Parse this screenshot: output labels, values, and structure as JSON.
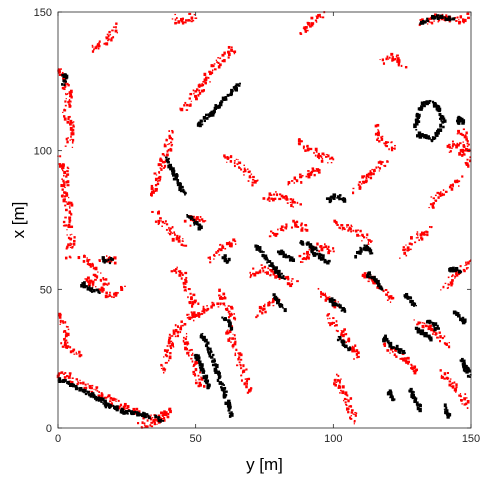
{
  "chart_data": {
    "type": "scatter",
    "title": "",
    "xlabel": "y [m]",
    "ylabel": "x [m]",
    "xlim": [
      0,
      150
    ],
    "ylim": [
      0,
      150
    ],
    "grid": false,
    "legend": "none",
    "x_ticks": [
      "0",
      "50",
      "100",
      "150"
    ],
    "y_ticks": [
      "0",
      "50",
      "100",
      "150"
    ],
    "colors": {
      "red_points": "#ff0000",
      "black_points": "#000000",
      "axes": "#262626",
      "background": "#ffffff"
    },
    "red_features": [
      [
        [
          0,
          130
        ],
        [
          2,
          126
        ],
        [
          4,
          120
        ],
        [
          3,
          114
        ],
        [
          5,
          108
        ],
        [
          4,
          102
        ]
      ],
      [
        [
          0,
          98
        ],
        [
          3,
          92
        ],
        [
          2,
          85
        ],
        [
          4,
          80
        ],
        [
          3,
          74
        ],
        [
          5,
          68
        ],
        [
          4,
          62
        ]
      ],
      [
        [
          0,
          40
        ],
        [
          3,
          36
        ],
        [
          2,
          30
        ],
        [
          5,
          28
        ],
        [
          8,
          26
        ]
      ],
      [
        [
          0,
          20
        ],
        [
          6,
          17
        ],
        [
          12,
          14
        ],
        [
          18,
          11
        ],
        [
          24,
          8
        ],
        [
          30,
          5
        ],
        [
          36,
          3
        ]
      ],
      [
        [
          8,
          62
        ],
        [
          12,
          58
        ],
        [
          15,
          54
        ],
        [
          18,
          52
        ]
      ],
      [
        [
          10,
          54
        ],
        [
          14,
          50
        ],
        [
          20,
          48
        ],
        [
          24,
          50
        ]
      ],
      [
        [
          16,
          60
        ],
        [
          19,
          61
        ],
        [
          22,
          60
        ]
      ],
      [
        [
          38,
          20
        ],
        [
          40,
          28
        ],
        [
          42,
          34
        ],
        [
          45,
          38
        ],
        [
          50,
          41
        ],
        [
          56,
          44
        ],
        [
          60,
          46
        ]
      ],
      [
        [
          38,
          3
        ],
        [
          40,
          6
        ],
        [
          35,
          2
        ],
        [
          30,
          1
        ]
      ],
      [
        [
          45,
          34
        ],
        [
          48,
          28
        ],
        [
          50,
          22
        ],
        [
          52,
          14
        ]
      ],
      [
        [
          45,
          115
        ],
        [
          48,
          118
        ],
        [
          51,
          122
        ],
        [
          54,
          126
        ],
        [
          57,
          130
        ],
        [
          60,
          134
        ],
        [
          64,
          137
        ]
      ],
      [
        [
          34,
          82
        ],
        [
          36,
          90
        ],
        [
          38,
          96
        ],
        [
          40,
          102
        ],
        [
          42,
          108
        ]
      ],
      [
        [
          35,
          78
        ],
        [
          38,
          74
        ],
        [
          42,
          70
        ],
        [
          46,
          66
        ]
      ],
      [
        [
          42,
          58
        ],
        [
          46,
          54
        ],
        [
          48,
          48
        ],
        [
          50,
          44
        ]
      ],
      [
        [
          47,
          74
        ],
        [
          50,
          76
        ],
        [
          53,
          74
        ]
      ],
      [
        [
          55,
          60
        ],
        [
          58,
          64
        ],
        [
          62,
          66
        ],
        [
          65,
          68
        ]
      ],
      [
        [
          58,
          50
        ],
        [
          60,
          46
        ],
        [
          62,
          42
        ],
        [
          64,
          38
        ]
      ],
      [
        [
          62,
          36
        ],
        [
          64,
          30
        ],
        [
          66,
          24
        ],
        [
          68,
          18
        ],
        [
          70,
          12
        ]
      ],
      [
        [
          70,
          55
        ],
        [
          74,
          58
        ],
        [
          78,
          56
        ],
        [
          82,
          54
        ],
        [
          86,
          52
        ]
      ],
      [
        [
          72,
          40
        ],
        [
          76,
          44
        ],
        [
          80,
          46
        ]
      ],
      [
        [
          75,
          82
        ],
        [
          80,
          84
        ],
        [
          84,
          82
        ],
        [
          88,
          80
        ]
      ],
      [
        [
          78,
          70
        ],
        [
          82,
          72
        ],
        [
          86,
          74
        ],
        [
          90,
          72
        ]
      ],
      [
        [
          84,
          88
        ],
        [
          88,
          90
        ],
        [
          92,
          92
        ],
        [
          96,
          94
        ]
      ],
      [
        [
          88,
          60
        ],
        [
          92,
          64
        ],
        [
          96,
          66
        ],
        [
          100,
          64
        ]
      ],
      [
        [
          95,
          50
        ],
        [
          98,
          46
        ],
        [
          102,
          44
        ]
      ],
      [
        [
          98,
          40
        ],
        [
          102,
          36
        ],
        [
          106,
          30
        ],
        [
          110,
          24
        ]
      ],
      [
        [
          100,
          20
        ],
        [
          103,
          14
        ],
        [
          106,
          8
        ],
        [
          108,
          2
        ]
      ],
      [
        [
          100,
          74
        ],
        [
          105,
          72
        ],
        [
          110,
          70
        ],
        [
          114,
          66
        ]
      ],
      [
        [
          108,
          86
        ],
        [
          112,
          90
        ],
        [
          116,
          94
        ],
        [
          120,
          96
        ]
      ],
      [
        [
          110,
          56
        ],
        [
          114,
          54
        ],
        [
          118,
          50
        ],
        [
          122,
          46
        ]
      ],
      [
        [
          118,
          30
        ],
        [
          122,
          28
        ],
        [
          126,
          24
        ],
        [
          130,
          20
        ]
      ],
      [
        [
          125,
          62
        ],
        [
          128,
          66
        ],
        [
          132,
          70
        ],
        [
          136,
          72
        ]
      ],
      [
        [
          130,
          38
        ],
        [
          134,
          36
        ],
        [
          138,
          34
        ],
        [
          142,
          30
        ]
      ],
      [
        [
          135,
          80
        ],
        [
          138,
          84
        ],
        [
          142,
          86
        ],
        [
          146,
          90
        ]
      ],
      [
        [
          140,
          50
        ],
        [
          144,
          54
        ],
        [
          148,
          58
        ],
        [
          150,
          60
        ]
      ],
      [
        [
          142,
          100
        ],
        [
          145,
          104
        ],
        [
          148,
          98
        ],
        [
          150,
          94
        ]
      ],
      [
        [
          140,
          20
        ],
        [
          143,
          16
        ],
        [
          146,
          12
        ],
        [
          149,
          8
        ]
      ],
      [
        [
          60,
          98
        ],
        [
          64,
          96
        ],
        [
          68,
          92
        ],
        [
          72,
          88
        ]
      ],
      [
        [
          88,
          104
        ],
        [
          92,
          100
        ],
        [
          96,
          98
        ],
        [
          100,
          96
        ]
      ],
      [
        [
          115,
          108
        ],
        [
          118,
          104
        ],
        [
          122,
          100
        ]
      ],
      [
        [
          42,
          148
        ],
        [
          46,
          146
        ],
        [
          50,
          149
        ]
      ],
      [
        [
          88,
          142
        ],
        [
          92,
          146
        ],
        [
          96,
          149
        ]
      ],
      [
        [
          118,
          132
        ],
        [
          122,
          134
        ],
        [
          126,
          130
        ]
      ],
      [
        [
          132,
          146
        ],
        [
          138,
          148
        ],
        [
          144,
          147
        ],
        [
          150,
          148
        ]
      ],
      [
        [
          22,
          145
        ],
        [
          18,
          140
        ],
        [
          12,
          136
        ]
      ],
      [
        [
          150,
          100
        ],
        [
          148,
          104
        ],
        [
          146,
          108
        ]
      ]
    ],
    "black_features": [
      [
        [
          2,
          128
        ],
        [
          3,
          126
        ],
        [
          2,
          124
        ]
      ],
      [
        [
          0,
          18
        ],
        [
          6,
          15
        ],
        [
          12,
          12
        ],
        [
          18,
          8
        ],
        [
          24,
          6
        ],
        [
          30,
          5
        ],
        [
          34,
          4
        ]
      ],
      [
        [
          14,
          11
        ],
        [
          18,
          9
        ],
        [
          22,
          7
        ]
      ],
      [
        [
          36,
          4
        ],
        [
          38,
          2
        ]
      ],
      [
        [
          16,
          61
        ],
        [
          18,
          60
        ],
        [
          20,
          61
        ]
      ],
      [
        [
          9,
          52
        ],
        [
          12,
          50
        ],
        [
          15,
          49
        ]
      ],
      [
        [
          52,
          34
        ],
        [
          54,
          30
        ],
        [
          56,
          26
        ],
        [
          58,
          20
        ],
        [
          60,
          14
        ],
        [
          62,
          8
        ],
        [
          63,
          4
        ]
      ],
      [
        [
          50,
          26
        ],
        [
          53,
          20
        ],
        [
          55,
          14
        ]
      ],
      [
        [
          60,
          40
        ],
        [
          62,
          38
        ],
        [
          63,
          36
        ]
      ],
      [
        [
          46,
          84
        ],
        [
          44,
          88
        ],
        [
          42,
          92
        ],
        [
          39,
          98
        ]
      ],
      [
        [
          51,
          109
        ],
        [
          55,
          113
        ],
        [
          59,
          117
        ],
        [
          63,
          121
        ],
        [
          66,
          124
        ]
      ],
      [
        [
          47,
          77
        ],
        [
          50,
          74
        ],
        [
          52,
          72
        ]
      ],
      [
        [
          60,
          62
        ],
        [
          62,
          60
        ]
      ],
      [
        [
          72,
          66
        ],
        [
          75,
          62
        ],
        [
          78,
          58
        ],
        [
          80,
          56
        ],
        [
          82,
          54
        ]
      ],
      [
        [
          80,
          64
        ],
        [
          83,
          62
        ],
        [
          86,
          60
        ]
      ],
      [
        [
          88,
          67
        ],
        [
          91,
          66
        ],
        [
          94,
          64
        ]
      ],
      [
        [
          98,
          82
        ],
        [
          101,
          84
        ],
        [
          104,
          82
        ]
      ],
      [
        [
          92,
          64
        ],
        [
          95,
          62
        ],
        [
          98,
          60
        ]
      ],
      [
        [
          99,
          46
        ],
        [
          102,
          44
        ],
        [
          104,
          42
        ]
      ],
      [
        [
          102,
          33
        ],
        [
          104,
          30
        ],
        [
          106,
          28
        ]
      ],
      [
        [
          108,
          62
        ],
        [
          110,
          64
        ],
        [
          112,
          66
        ],
        [
          114,
          63
        ]
      ],
      [
        [
          112,
          56
        ],
        [
          115,
          54
        ],
        [
          118,
          50
        ]
      ],
      [
        [
          118,
          33
        ],
        [
          121,
          30
        ],
        [
          124,
          28
        ],
        [
          126,
          27
        ]
      ],
      [
        [
          126,
          48
        ],
        [
          128,
          46
        ],
        [
          130,
          44
        ]
      ],
      [
        [
          130,
          36
        ],
        [
          133,
          34
        ],
        [
          136,
          32
        ]
      ],
      [
        [
          134,
          39
        ],
        [
          138,
          36
        ]
      ],
      [
        [
          144,
          42
        ],
        [
          146,
          40
        ],
        [
          148,
          38
        ]
      ],
      [
        [
          142,
          56
        ],
        [
          144,
          58
        ],
        [
          146,
          56
        ]
      ],
      [
        [
          146,
          26
        ],
        [
          148,
          22
        ],
        [
          150,
          18
        ]
      ],
      [
        [
          145,
          109
        ],
        [
          146,
          112
        ],
        [
          147,
          110
        ]
      ],
      [
        [
          132,
          146
        ],
        [
          136,
          148
        ],
        [
          140,
          148
        ],
        [
          144,
          147
        ]
      ],
      [
        [
          130,
          108
        ],
        [
          131,
          114
        ],
        [
          134,
          118
        ],
        [
          138,
          116
        ],
        [
          140,
          110
        ],
        [
          136,
          104
        ],
        [
          131,
          106
        ]
      ],
      [
        [
          128,
          14
        ],
        [
          130,
          10
        ],
        [
          132,
          6
        ]
      ],
      [
        [
          120,
          14
        ],
        [
          122,
          10
        ]
      ],
      [
        [
          140,
          8
        ],
        [
          142,
          4
        ]
      ],
      [
        [
          78,
          48
        ],
        [
          80,
          46
        ],
        [
          82,
          42
        ]
      ]
    ]
  }
}
